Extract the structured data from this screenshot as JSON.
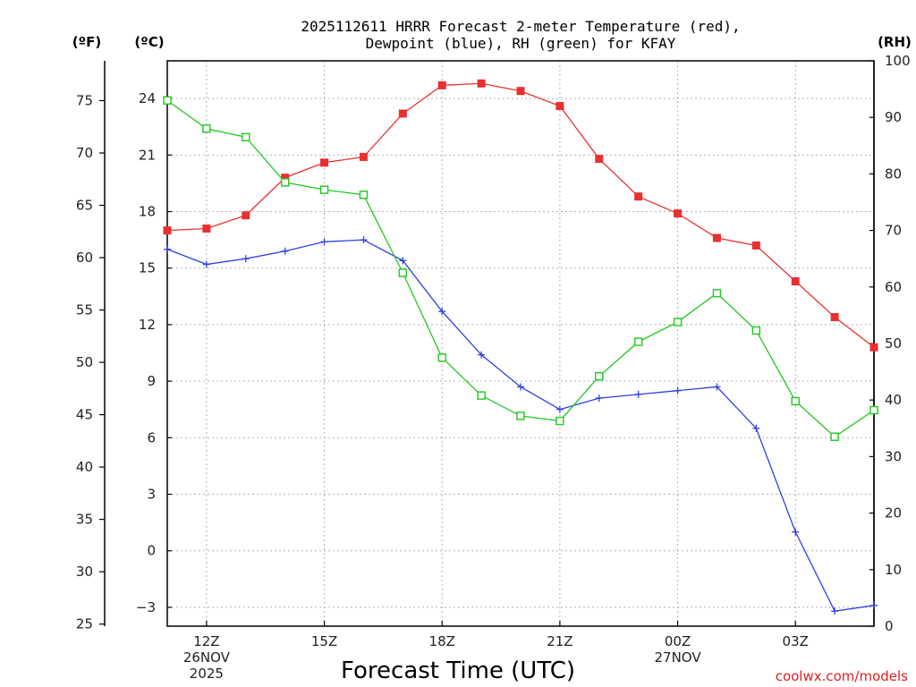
{
  "chart_data": {
    "type": "line",
    "title_line1": "2025112611 HRRR Forecast 2-meter Temperature (red),",
    "title_line2": "Dewpoint (blue), RH (green) for KFAY",
    "xlabel": "Forecast Time (UTC)",
    "units": {
      "fahrenheit": "(ºF)",
      "celsius": "(ºC)",
      "rh": "(RH)"
    },
    "credit": "coolwx.com/models",
    "x_hours": [
      11,
      12,
      13,
      14,
      15,
      16,
      17,
      18,
      19,
      20,
      21,
      22,
      23,
      24,
      25,
      26,
      27,
      28,
      29
    ],
    "x_ticks": [
      {
        "hour": 12,
        "lines": [
          "12Z",
          "26NOV",
          "2025"
        ]
      },
      {
        "hour": 15,
        "lines": [
          "15Z"
        ]
      },
      {
        "hour": 18,
        "lines": [
          "18Z"
        ]
      },
      {
        "hour": 21,
        "lines": [
          "21Z"
        ]
      },
      {
        "hour": 24,
        "lines": [
          "00Z",
          "27NOV"
        ]
      },
      {
        "hour": 27,
        "lines": [
          "03Z"
        ]
      }
    ],
    "xlim": [
      11,
      29
    ],
    "celsius_axis": {
      "ylim": [
        -4,
        26
      ],
      "ticks": [
        -3,
        0,
        3,
        6,
        9,
        12,
        15,
        18,
        21,
        24
      ]
    },
    "fahrenheit_ticks": [
      25,
      30,
      35,
      40,
      45,
      50,
      55,
      60,
      65,
      70,
      75
    ],
    "rh_axis": {
      "ylim": [
        0,
        100
      ],
      "ticks": [
        0,
        10,
        20,
        30,
        40,
        50,
        60,
        70,
        80,
        90,
        100
      ]
    },
    "series": [
      {
        "name": "Temperature",
        "color": "#e83030",
        "marker": "filled-square",
        "axis": "celsius",
        "values": [
          17.0,
          17.1,
          17.8,
          19.8,
          20.6,
          20.9,
          23.2,
          24.7,
          24.8,
          24.4,
          23.6,
          20.8,
          18.8,
          17.9,
          16.6,
          16.2,
          14.3,
          12.4,
          10.8
        ]
      },
      {
        "name": "Dewpoint",
        "color": "#3040e0",
        "marker": "plus",
        "axis": "celsius",
        "values": [
          16.0,
          15.2,
          15.5,
          15.9,
          16.4,
          16.5,
          15.4,
          12.7,
          10.4,
          8.7,
          7.5,
          8.1,
          8.3,
          8.5,
          8.7,
          6.5,
          1.0,
          -3.2,
          -2.9
        ]
      },
      {
        "name": "RH",
        "color": "#20c820",
        "marker": "open-square",
        "axis": "rh",
        "values": [
          93,
          88,
          86.5,
          78.5,
          77.2,
          76.3,
          62.5,
          47.5,
          40.8,
          37.2,
          36.3,
          44.2,
          50.3,
          53.8,
          58.9,
          52.3,
          39.8,
          33.5,
          38.2
        ]
      }
    ]
  }
}
